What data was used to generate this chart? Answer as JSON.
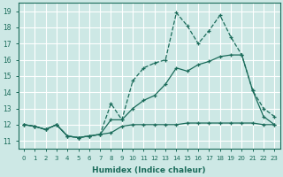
{
  "xlabel": "Humidex (Indice chaleur)",
  "bg_color": "#cde8e5",
  "grid_color": "#ffffff",
  "line_color": "#1a6b5a",
  "xlim": [
    -0.5,
    23.5
  ],
  "ylim": [
    10.5,
    19.5
  ],
  "xticks": [
    0,
    1,
    2,
    3,
    4,
    5,
    6,
    7,
    8,
    9,
    10,
    11,
    12,
    13,
    14,
    15,
    16,
    17,
    18,
    19,
    20,
    21,
    22,
    23
  ],
  "yticks": [
    11,
    12,
    13,
    14,
    15,
    16,
    17,
    18,
    19
  ],
  "curve1_x": [
    0,
    1,
    2,
    3,
    4,
    5,
    6,
    7,
    8,
    9,
    10,
    11,
    12,
    13,
    14,
    15,
    16,
    17,
    18,
    19,
    20,
    21,
    22,
    23
  ],
  "curve1_y": [
    12.0,
    11.9,
    11.7,
    12.0,
    11.3,
    11.2,
    11.3,
    11.4,
    13.3,
    12.3,
    14.7,
    15.5,
    15.8,
    16.0,
    18.9,
    18.1,
    17.0,
    17.8,
    18.75,
    17.4,
    16.3,
    14.1,
    13.0,
    12.5
  ],
  "curve2_x": [
    0,
    1,
    2,
    3,
    4,
    5,
    6,
    7,
    8,
    9,
    10,
    11,
    12,
    13,
    14,
    15,
    16,
    17,
    18,
    19,
    20,
    21,
    22,
    23
  ],
  "curve2_y": [
    12.0,
    11.9,
    11.7,
    12.0,
    11.3,
    11.2,
    11.3,
    11.4,
    12.3,
    12.3,
    13.0,
    13.5,
    13.8,
    14.5,
    15.5,
    15.3,
    15.7,
    15.9,
    16.2,
    16.3,
    16.3,
    14.1,
    12.5,
    12.0
  ],
  "curve3_full_x": [
    0,
    1,
    2,
    3,
    4,
    5,
    6,
    7,
    8,
    9,
    10,
    11,
    12,
    13,
    14,
    15,
    16,
    17,
    18,
    19,
    20,
    21,
    22,
    23
  ],
  "curve3_full_y": [
    12.0,
    11.9,
    11.7,
    12.0,
    11.3,
    11.2,
    11.3,
    11.4,
    11.5,
    11.9,
    12.0,
    12.0,
    12.0,
    12.0,
    12.0,
    12.1,
    12.1,
    12.1,
    12.1,
    12.1,
    12.1,
    12.1,
    12.0,
    12.0
  ]
}
